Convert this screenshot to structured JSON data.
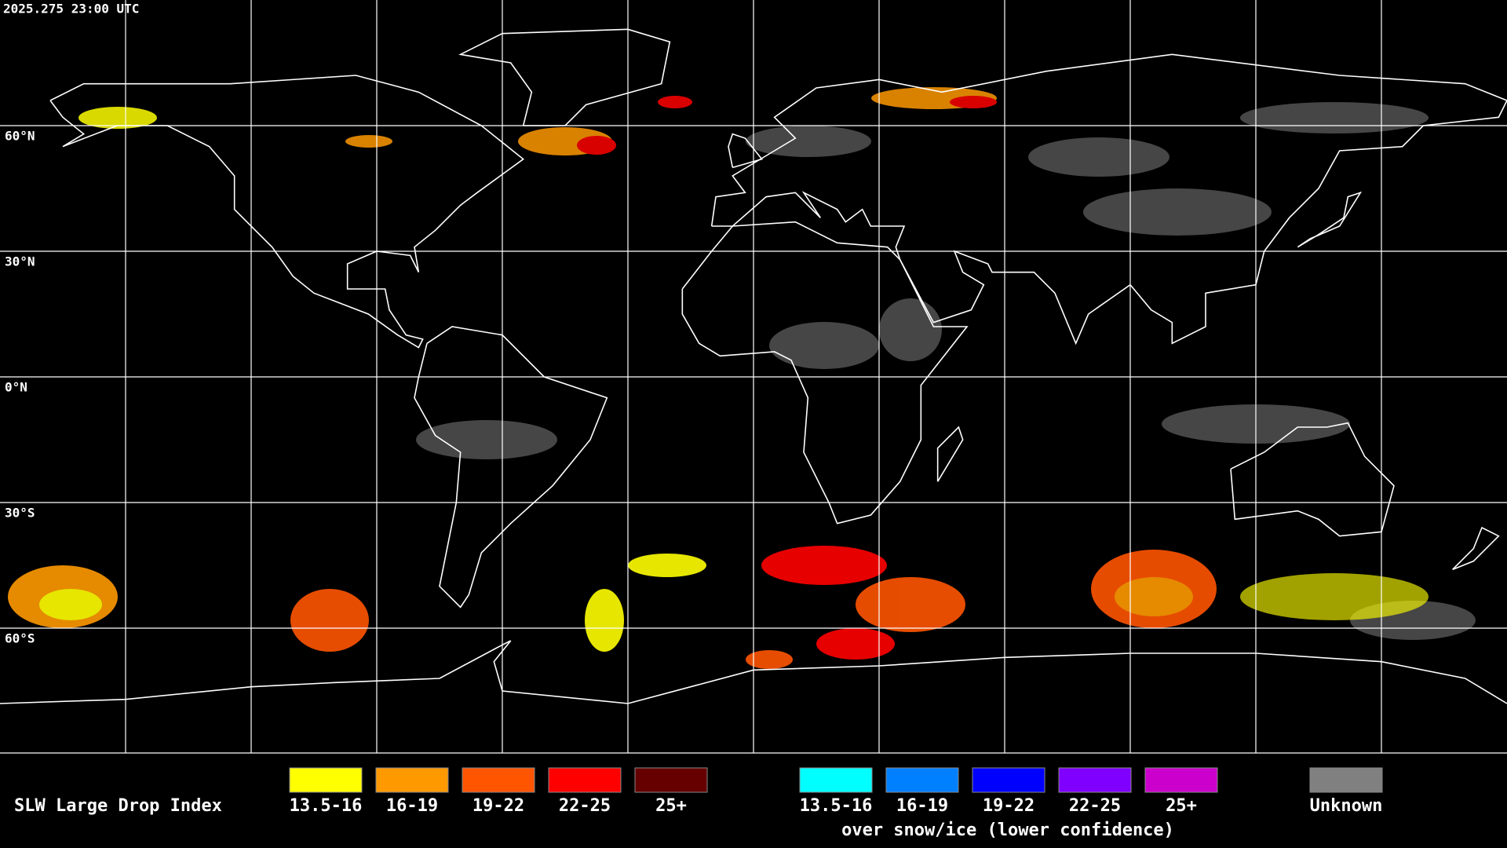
{
  "timestamp": "2025.275 23:00 UTC",
  "latitude_labels": [
    "60°N",
    "30°N",
    "0°N",
    "30°S",
    "60°S"
  ],
  "legend": {
    "title": "SLW Large Drop Index",
    "items": [
      {
        "label": "13.5-16",
        "color": "#ffff00"
      },
      {
        "label": "16-19",
        "color": "#ff9900"
      },
      {
        "label": "19-22",
        "color": "#ff5500"
      },
      {
        "label": "22-25",
        "color": "#ff0000"
      },
      {
        "label": "25+",
        "color": "#660000"
      }
    ],
    "snow_ice_items": [
      {
        "label": "13.5-16",
        "color": "#00ffff"
      },
      {
        "label": "16-19",
        "color": "#0080ff"
      },
      {
        "label": "19-22",
        "color": "#0000ff"
      },
      {
        "label": "22-25",
        "color": "#7f00ff"
      },
      {
        "label": "25+",
        "color": "#cc00cc"
      }
    ],
    "snow_ice_caption": "over snow/ice (lower confidence)",
    "unknown": {
      "label": "Unknown",
      "color": "#808080"
    }
  }
}
